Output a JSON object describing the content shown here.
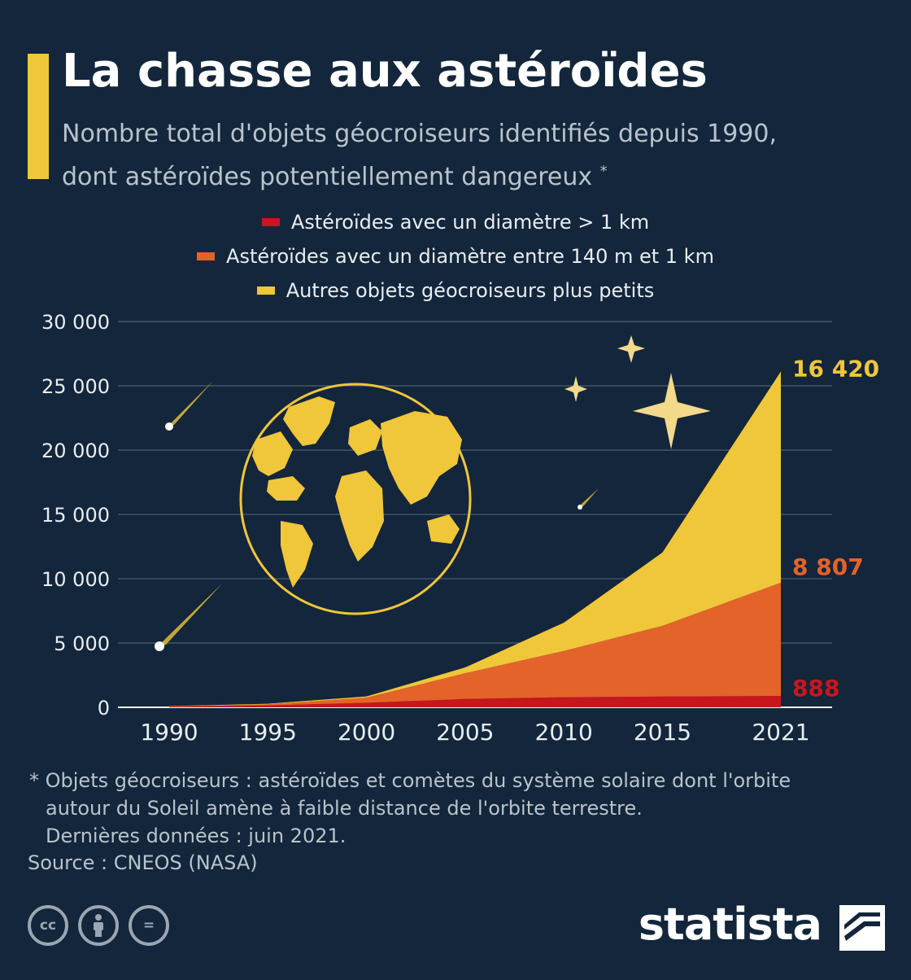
{
  "header": {
    "title": "La chasse aux astéroïdes",
    "subtitle_line1": "Nombre total d'objets géocroiseurs identifiés depuis 1990,",
    "subtitle_line2": "dont astéroïdes potentiellement dangereux",
    "subtitle_star": "*"
  },
  "legend": [
    {
      "label": "Astéroïdes avec un diamètre > 1 km",
      "color": "#c8161d"
    },
    {
      "label": "Astéroïdes avec un diamètre entre 140 m et 1 km",
      "color": "#e3632a"
    },
    {
      "label": "Autres objets géocroiseurs plus petits",
      "color": "#f0c63a"
    }
  ],
  "chart_data": {
    "type": "area",
    "stacked": true,
    "x": [
      1990,
      1995,
      2000,
      2005,
      2010,
      2015,
      2021
    ],
    "x_tick_labels": [
      "1990",
      "1995",
      "2000",
      "2005",
      "2010",
      "2015",
      "2021"
    ],
    "y_tick_labels": [
      "0",
      "5 000",
      "10 000",
      "15 000",
      "20 000",
      "25 000",
      "30 000"
    ],
    "ylim": [
      0,
      30000
    ],
    "grid": true,
    "series": [
      {
        "name": "Astéroïdes avec un diamètre > 1 km",
        "color": "#c8161d",
        "values": [
          60,
          150,
          350,
          650,
          780,
          840,
          888
        ],
        "end_label": "888"
      },
      {
        "name": "Astéroïdes avec un diamètre entre 140 m et 1 km",
        "color": "#e3632a",
        "values": [
          20,
          80,
          400,
          2000,
          3600,
          5500,
          8807
        ],
        "end_label": "8 807"
      },
      {
        "name": "Autres objets géocroiseurs plus petits",
        "color": "#f0c63a",
        "values": [
          20,
          50,
          100,
          450,
          2200,
          5700,
          16420
        ],
        "end_label": "16 420"
      }
    ],
    "background": "#13263b",
    "grid_color": "#5a6b7c"
  },
  "footnote": {
    "line1": "* Objets géocroiseurs : astéroïdes et comètes du système solaire dont l'orbite",
    "line2": "autour du Soleil amène à faible distance de l'orbite terrestre.",
    "line3": "Dernières données : juin 2021."
  },
  "source": "Source : CNEOS (NASA)",
  "license_icons": [
    "cc-icon",
    "person-icon",
    "equals-icon"
  ],
  "license_text": {
    "cc": "cc",
    "eq": "="
  },
  "brand": "statista",
  "illustration": {
    "icons": [
      "globe-icon",
      "star-icon",
      "comet-icon"
    ]
  }
}
